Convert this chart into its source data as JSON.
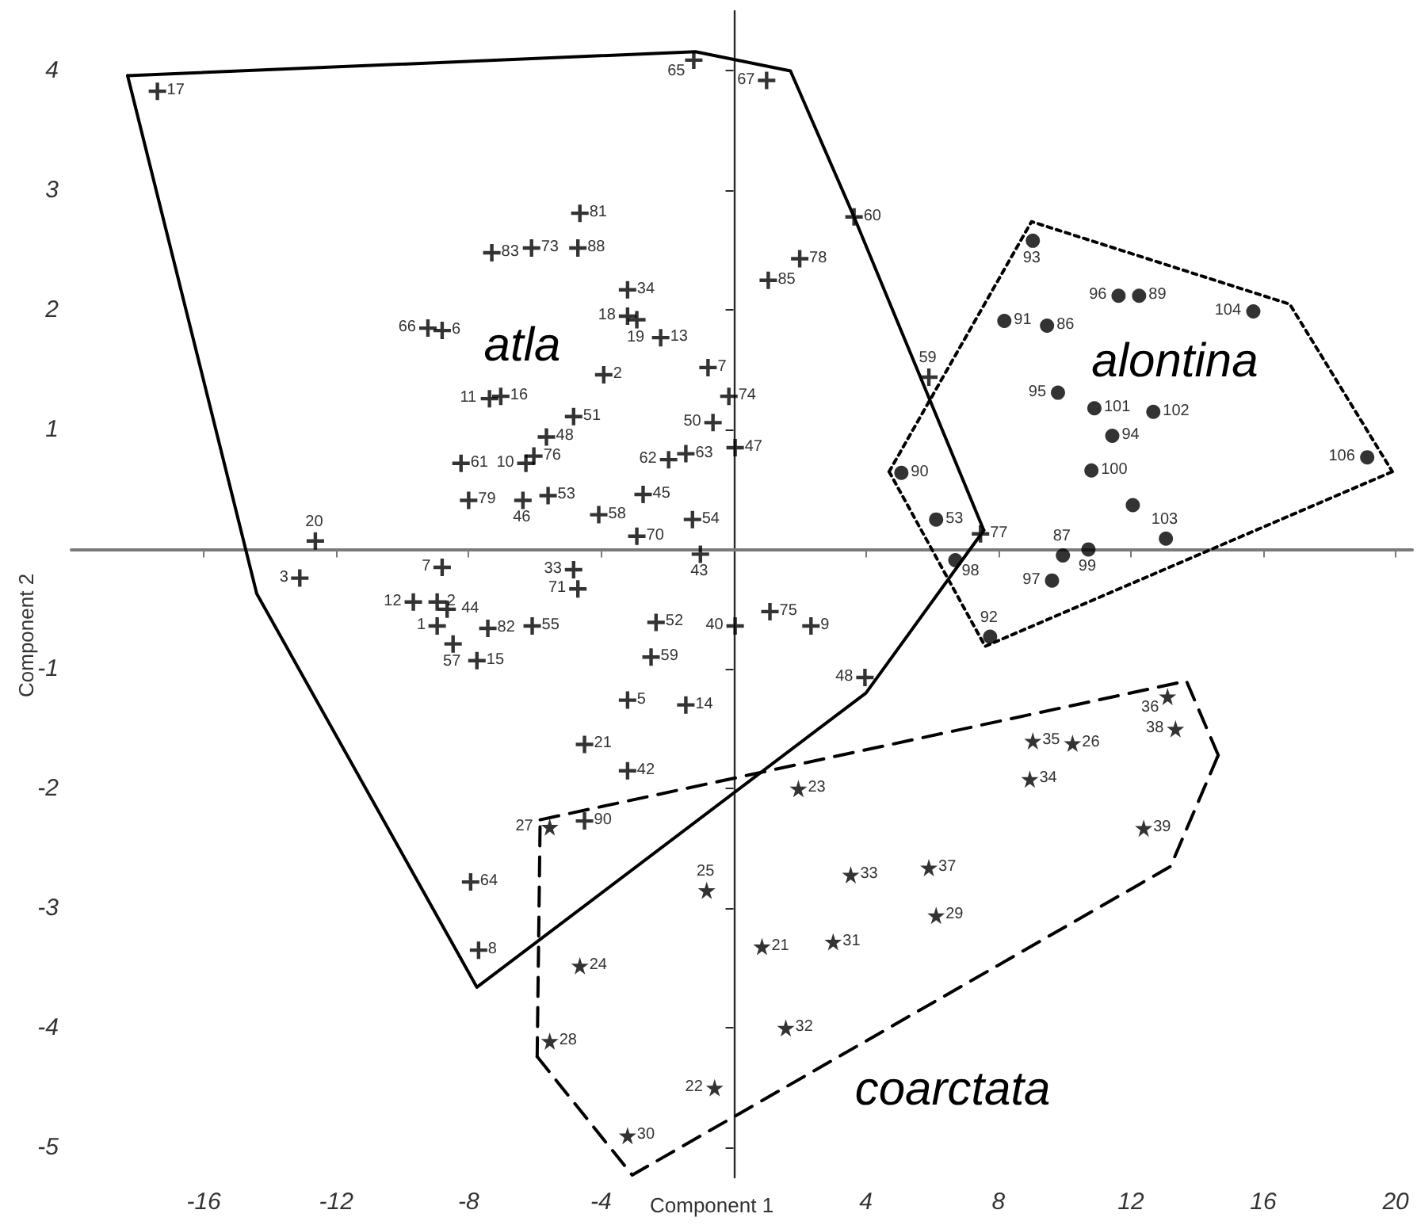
{
  "chart_data": {
    "type": "scatter",
    "xlabel": "Component 1",
    "ylabel": "Component 2",
    "xlim": [
      -20,
      20.5
    ],
    "ylim": [
      -5.25,
      4.5
    ],
    "xticks": [
      -16,
      -12,
      -8,
      -4,
      4,
      8,
      12,
      16,
      20
    ],
    "yticks": [
      -5,
      -4,
      -3,
      -2,
      -1,
      1,
      2,
      3,
      4
    ],
    "series": [
      {
        "name": "atla",
        "type": "scatter",
        "marker": "cross",
        "color": "#000000",
        "x": [
          -17.4,
          -1.2,
          1.0,
          3.64,
          2.0,
          1.05,
          5.9,
          -4.64,
          -7.3,
          -6.1,
          -4.7,
          -3.2,
          -3.2,
          -2.92,
          -2.2,
          -0.77,
          -0.14,
          -0.62,
          0.05,
          -3.92,
          -4.83,
          -5.65,
          -6.03,
          -6.27,
          -7.37,
          -7.03,
          -8.23,
          -8.0,
          -6.36,
          -5.6,
          -4.07,
          -2.73,
          -2.92,
          -1.24,
          -1.96,
          -1.44,
          -9.23,
          -8.8,
          -12.63,
          -13.1,
          -1.0,
          -4.83,
          -4.7,
          -8.8,
          -9.67,
          -8.95,
          -8.65,
          -8.95,
          -8.47,
          -7.42,
          -7.75,
          -6.08,
          -2.34,
          0.05,
          -2.49,
          -3.2,
          -1.44,
          -4.5,
          -3.2,
          -4.5,
          -7.94,
          -7.7,
          1.1,
          2.34,
          3.97,
          7.46
        ],
        "values": [
          3.83,
          4.09,
          3.92,
          2.78,
          2.43,
          2.25,
          1.44,
          2.81,
          2.48,
          2.52,
          2.52,
          2.17,
          1.95,
          1.92,
          1.77,
          1.52,
          1.28,
          1.06,
          0.85,
          1.46,
          1.11,
          0.94,
          0.78,
          0.72,
          1.26,
          1.28,
          0.72,
          0.41,
          0.41,
          0.45,
          0.29,
          0.46,
          0.11,
          0.25,
          0.75,
          0.8,
          1.85,
          1.83,
          0.07,
          -0.24,
          -0.04,
          -0.17,
          -0.33,
          -0.15,
          -0.44,
          -0.44,
          -0.5,
          -0.64,
          -0.79,
          -0.66,
          -0.93,
          -0.64,
          -0.61,
          -0.64,
          -0.9,
          -1.26,
          -1.3,
          -1.63,
          -1.85,
          -2.27,
          -2.78,
          -3.35,
          -0.52,
          -0.64,
          -1.07,
          0.13
        ]
      },
      {
        "name": "alontina",
        "type": "scatter",
        "marker": "circle",
        "color": "#000000",
        "x": [
          9.04,
          11.63,
          12.25,
          15.7,
          8.18,
          9.47,
          9.8,
          10.9,
          12.68,
          11.44,
          10.81,
          12.06,
          19.14,
          13.06,
          10.72,
          9.95,
          9.62,
          6.7,
          5.07,
          6.12,
          7.75
        ],
        "values": [
          2.58,
          2.12,
          2.12,
          1.99,
          1.91,
          1.87,
          1.31,
          1.18,
          1.15,
          0.95,
          0.66,
          0.37,
          0.77,
          0.09,
          0.0,
          -0.05,
          -0.26,
          -0.09,
          0.64,
          0.25,
          -0.73
        ]
      },
      {
        "name": "coarctata",
        "type": "scatter",
        "marker": "star",
        "color": "#000000",
        "x": [
          1.96,
          -5.55,
          -0.81,
          3.54,
          5.9,
          6.12,
          0.86,
          3.01,
          -4.64,
          -5.55,
          1.58,
          -0.57,
          -3.2,
          9.04,
          10.24,
          8.95,
          12.39,
          13.11,
          13.35
        ],
        "values": [
          -2.0,
          -2.32,
          -2.85,
          -2.72,
          -2.66,
          -3.06,
          -3.32,
          -3.28,
          -3.48,
          -4.11,
          -4.0,
          -4.5,
          -4.9,
          -1.6,
          -1.62,
          -1.92,
          -2.33,
          -1.23,
          -1.5
        ]
      },
      {
        "type": "line",
        "marker": "none",
        "line_style": "solid",
        "color": "#000000",
        "x": [
          -18.3,
          -1.15,
          1.72,
          3.64,
          7.56
        ],
        "values": [
          3.96,
          4.16,
          4.0,
          2.78,
          0.16
        ]
      },
      {
        "type": "line",
        "marker": "none",
        "line_style": "solid",
        "color": "#000000",
        "x": [
          -18.3,
          -14.4,
          -7.75,
          4.0,
          7.56
        ],
        "values": [
          3.96,
          -0.37,
          -3.66,
          -1.2,
          0.16
        ]
      },
      {
        "type": "line",
        "marker": "none",
        "line_style": "dotted",
        "color": "#000000",
        "x": [
          4.7,
          9.0,
          16.8,
          19.9
        ],
        "values": [
          0.65,
          2.74,
          2.05,
          0.65
        ]
      },
      {
        "type": "line",
        "marker": "none",
        "line_style": "dotted",
        "color": "#000000",
        "x": [
          4.7,
          7.6,
          19.9
        ],
        "values": [
          0.65,
          -0.81,
          0.65
        ]
      },
      {
        "type": "line",
        "marker": "none",
        "line_style": "dashed",
        "color": "#000000",
        "x": [
          -5.84,
          13.68,
          14.64
        ],
        "values": [
          -2.26,
          -1.1,
          -1.72
        ]
      },
      {
        "type": "line",
        "marker": "none",
        "line_style": "dashed",
        "color": "#000000",
        "x": [
          -5.93,
          -3.06,
          13.2,
          14.64
        ],
        "values": [
          -4.24,
          -5.23,
          -2.65,
          -1.72
        ]
      },
      {
        "type": "line",
        "marker": "none",
        "line_style": "dashed",
        "color": "#000000",
        "x": [
          -5.93,
          -5.84
        ],
        "values": [
          -4.24,
          -2.26
        ]
      }
    ],
    "annotations": [
      {
        "text": "17",
        "x": -17.4,
        "y": 3.83
      },
      {
        "text": "65",
        "x": -1.2,
        "y": 4.09
      },
      {
        "text": "67",
        "x": 1.0,
        "y": 3.92
      },
      {
        "text": "60",
        "x": 3.64,
        "y": 2.78
      },
      {
        "text": "78",
        "x": 2.0,
        "y": 2.43
      },
      {
        "text": "85",
        "x": 1.05,
        "y": 2.25
      },
      {
        "text": "59",
        "x": 5.9,
        "y": 1.44
      },
      {
        "text": "81",
        "x": -4.64,
        "y": 2.81
      },
      {
        "text": "83",
        "x": -7.3,
        "y": 2.48
      },
      {
        "text": "73",
        "x": -6.1,
        "y": 2.52
      },
      {
        "text": "88",
        "x": -4.7,
        "y": 2.52
      },
      {
        "text": "34",
        "x": -3.2,
        "y": 2.17
      },
      {
        "text": "18",
        "x": -3.2,
        "y": 1.95
      },
      {
        "text": "19",
        "x": -2.92,
        "y": 1.92
      },
      {
        "text": "13",
        "x": -2.2,
        "y": 1.77
      },
      {
        "text": "7",
        "x": -0.77,
        "y": 1.52
      },
      {
        "text": "74",
        "x": -0.14,
        "y": 1.28
      },
      {
        "text": "50",
        "x": -0.62,
        "y": 1.06
      },
      {
        "text": "47",
        "x": 0.05,
        "y": 0.85
      },
      {
        "text": "2",
        "x": -3.92,
        "y": 1.46
      },
      {
        "text": "51",
        "x": -4.83,
        "y": 1.11
      },
      {
        "text": "48",
        "x": -5.65,
        "y": 0.94
      },
      {
        "text": "76",
        "x": -6.03,
        "y": 0.78
      },
      {
        "text": "10",
        "x": -6.27,
        "y": 0.72
      },
      {
        "text": "11",
        "x": -7.37,
        "y": 1.26
      },
      {
        "text": "16",
        "x": -7.03,
        "y": 1.28
      },
      {
        "text": "61",
        "x": -8.23,
        "y": 0.72
      },
      {
        "text": "79",
        "x": -8.0,
        "y": 0.41
      },
      {
        "text": "46",
        "x": -6.36,
        "y": 0.41
      },
      {
        "text": "53",
        "x": -5.6,
        "y": 0.45
      },
      {
        "text": "58",
        "x": -4.07,
        "y": 0.29
      },
      {
        "text": "45",
        "x": -2.73,
        "y": 0.46
      },
      {
        "text": "70",
        "x": -2.92,
        "y": 0.11
      },
      {
        "text": "54",
        "x": -1.24,
        "y": 0.25
      },
      {
        "text": "62",
        "x": -1.96,
        "y": 0.75
      },
      {
        "text": "63",
        "x": -1.44,
        "y": 0.8
      },
      {
        "text": "66",
        "x": -9.23,
        "y": 1.85
      },
      {
        "text": "6",
        "x": -8.8,
        "y": 1.83
      },
      {
        "text": "20",
        "x": -12.63,
        "y": 0.07
      },
      {
        "text": "3",
        "x": -13.1,
        "y": -0.24
      },
      {
        "text": "43",
        "x": -1.0,
        "y": -0.04
      },
      {
        "text": "33",
        "x": -4.83,
        "y": -0.17
      },
      {
        "text": "71",
        "x": -4.7,
        "y": -0.33
      },
      {
        "text": "7",
        "x": -8.8,
        "y": -0.15
      },
      {
        "text": "12",
        "x": -9.67,
        "y": -0.44
      },
      {
        "text": "2",
        "x": -8.95,
        "y": -0.44
      },
      {
        "text": "44",
        "x": -8.65,
        "y": -0.5
      },
      {
        "text": "1",
        "x": -8.95,
        "y": -0.64
      },
      {
        "text": "57",
        "x": -8.47,
        "y": -0.79
      },
      {
        "text": "82",
        "x": -7.42,
        "y": -0.66
      },
      {
        "text": "15",
        "x": -7.75,
        "y": -0.93
      },
      {
        "text": "55",
        "x": -6.08,
        "y": -0.64
      },
      {
        "text": "52",
        "x": -2.34,
        "y": -0.61
      },
      {
        "text": "40",
        "x": 0.05,
        "y": -0.64
      },
      {
        "text": "59",
        "x": -2.49,
        "y": -0.9
      },
      {
        "text": "5",
        "x": -3.2,
        "y": -1.26
      },
      {
        "text": "14",
        "x": -1.44,
        "y": -1.3
      },
      {
        "text": "21",
        "x": -4.5,
        "y": -1.63
      },
      {
        "text": "42",
        "x": -3.2,
        "y": -1.85
      },
      {
        "text": "90",
        "x": -4.5,
        "y": -2.27
      },
      {
        "text": "64",
        "x": -7.94,
        "y": -2.78
      },
      {
        "text": "8",
        "x": -7.7,
        "y": -3.35
      },
      {
        "text": "75",
        "x": 1.1,
        "y": -0.52
      },
      {
        "text": "9",
        "x": 2.34,
        "y": -0.64
      },
      {
        "text": "48",
        "x": 3.97,
        "y": -1.07
      },
      {
        "text": "77",
        "x": 7.46,
        "y": 0.13
      },
      {
        "text": "93",
        "x": 9.04,
        "y": 2.58
      },
      {
        "text": "96",
        "x": 11.63,
        "y": 2.12
      },
      {
        "text": "89",
        "x": 12.25,
        "y": 2.12
      },
      {
        "text": "104",
        "x": 15.7,
        "y": 1.99
      },
      {
        "text": "91",
        "x": 8.18,
        "y": 1.91
      },
      {
        "text": "86",
        "x": 9.47,
        "y": 1.87
      },
      {
        "text": "95",
        "x": 9.8,
        "y": 1.31
      },
      {
        "text": "101",
        "x": 10.9,
        "y": 1.18
      },
      {
        "text": "102",
        "x": 12.68,
        "y": 1.15
      },
      {
        "text": "94",
        "x": 11.44,
        "y": 0.95
      },
      {
        "text": "100",
        "x": 10.81,
        "y": 0.66
      },
      {
        "text": "106",
        "x": 19.14,
        "y": 0.77
      },
      {
        "text": "103",
        "x": 13.06,
        "y": 0.09
      },
      {
        "text": "99",
        "x": 10.72,
        "y": 0.0
      },
      {
        "text": "87",
        "x": 9.95,
        "y": -0.05
      },
      {
        "text": "97",
        "x": 9.62,
        "y": -0.26
      },
      {
        "text": "98",
        "x": 6.7,
        "y": -0.09
      },
      {
        "text": "90",
        "x": 5.07,
        "y": 0.64
      },
      {
        "text": "53",
        "x": 6.12,
        "y": 0.25
      },
      {
        "text": "92",
        "x": 7.75,
        "y": -0.73
      },
      {
        "text": "23",
        "x": 1.96,
        "y": -2.0
      },
      {
        "text": "27",
        "x": -5.55,
        "y": -2.32
      },
      {
        "text": "25",
        "x": -0.81,
        "y": -2.85
      },
      {
        "text": "33",
        "x": 3.54,
        "y": -2.72
      },
      {
        "text": "37",
        "x": 5.9,
        "y": -2.66
      },
      {
        "text": "29",
        "x": 6.12,
        "y": -3.06
      },
      {
        "text": "21",
        "x": 0.86,
        "y": -3.32
      },
      {
        "text": "31",
        "x": 3.01,
        "y": -3.28
      },
      {
        "text": "24",
        "x": -4.64,
        "y": -3.48
      },
      {
        "text": "28",
        "x": -5.55,
        "y": -4.11
      },
      {
        "text": "32",
        "x": 1.58,
        "y": -4.0
      },
      {
        "text": "22",
        "x": -0.57,
        "y": -4.5
      },
      {
        "text": "30",
        "x": -3.2,
        "y": -4.9
      },
      {
        "text": "35",
        "x": 9.04,
        "y": -1.6
      },
      {
        "text": "26",
        "x": 10.24,
        "y": -1.62
      },
      {
        "text": "34",
        "x": 8.95,
        "y": -1.92
      },
      {
        "text": "39",
        "x": 12.39,
        "y": -2.33
      },
      {
        "text": "36",
        "x": 13.11,
        "y": -1.23
      },
      {
        "text": "38",
        "x": 13.35,
        "y": -1.5
      }
    ]
  }
}
